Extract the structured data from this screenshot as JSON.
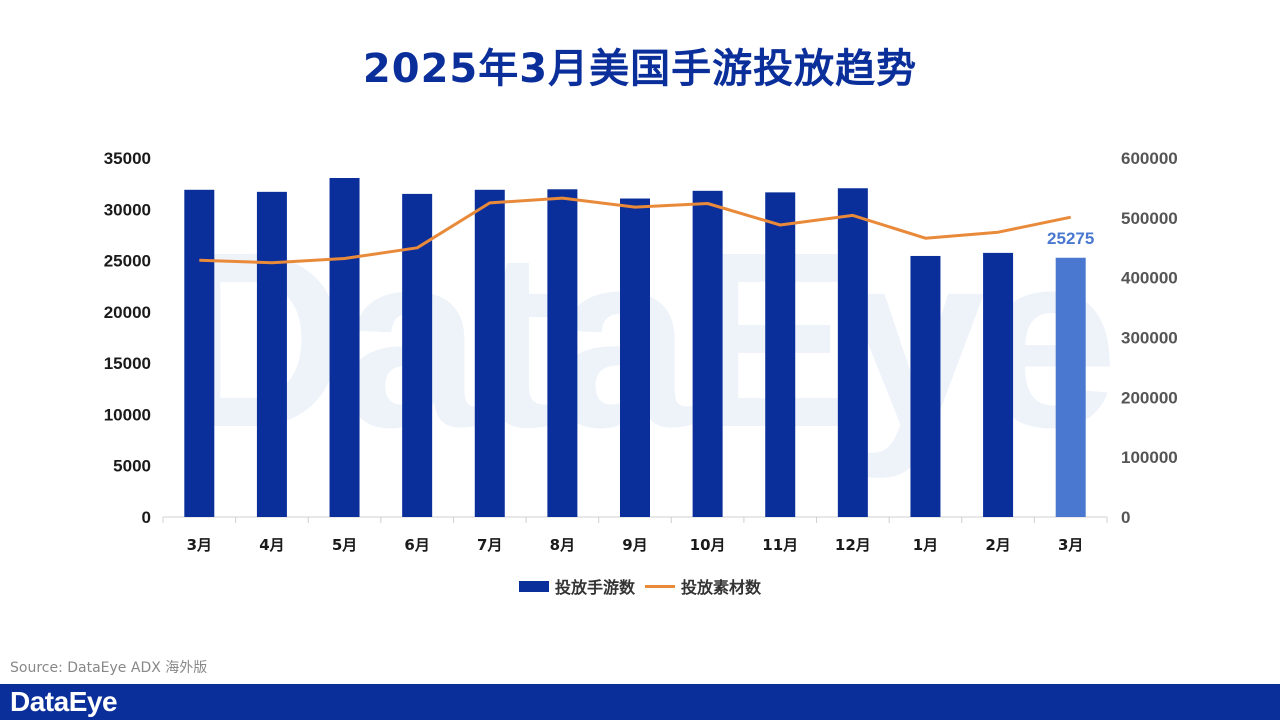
{
  "chart_data": {
    "type": "bar",
    "title": "2025年3月美国手游投放趋势",
    "categories": [
      "3月",
      "4月",
      "5月",
      "6月",
      "7月",
      "8月",
      "9月",
      "10月",
      "11月",
      "12月",
      "1月",
      "2月",
      "3月"
    ],
    "series": [
      {
        "name": "投放手游数",
        "type": "bar",
        "axis": "left",
        "values": [
          31900,
          31700,
          33050,
          31500,
          31900,
          31950,
          31050,
          31800,
          31650,
          32050,
          25450,
          25750,
          25275
        ],
        "color": "#0b2f9a",
        "highlight_color": "#4a78d0",
        "highlight_index": 12,
        "data_label": "25275"
      },
      {
        "name": "投放素材数",
        "type": "line",
        "axis": "right",
        "values": [
          429000,
          425000,
          432000,
          450000,
          525000,
          533000,
          518000,
          524000,
          488000,
          504000,
          466000,
          476000,
          501000
        ],
        "color": "#e98a3a"
      }
    ],
    "y_left": {
      "min": 0,
      "max": 35000,
      "ticks": [
        "35000",
        "30000",
        "25000",
        "20000",
        "15000",
        "10000",
        "5000",
        "0"
      ]
    },
    "y_right": {
      "min": 0,
      "max": 600000,
      "ticks": [
        "600000",
        "500000",
        "400000",
        "300000",
        "200000",
        "100000",
        "0"
      ]
    },
    "grid": false,
    "legend_position": "bottom"
  },
  "watermark": "DataEye",
  "source": "Source: DataEye ADX 海外版",
  "footer": {
    "logo": "DataEye"
  }
}
